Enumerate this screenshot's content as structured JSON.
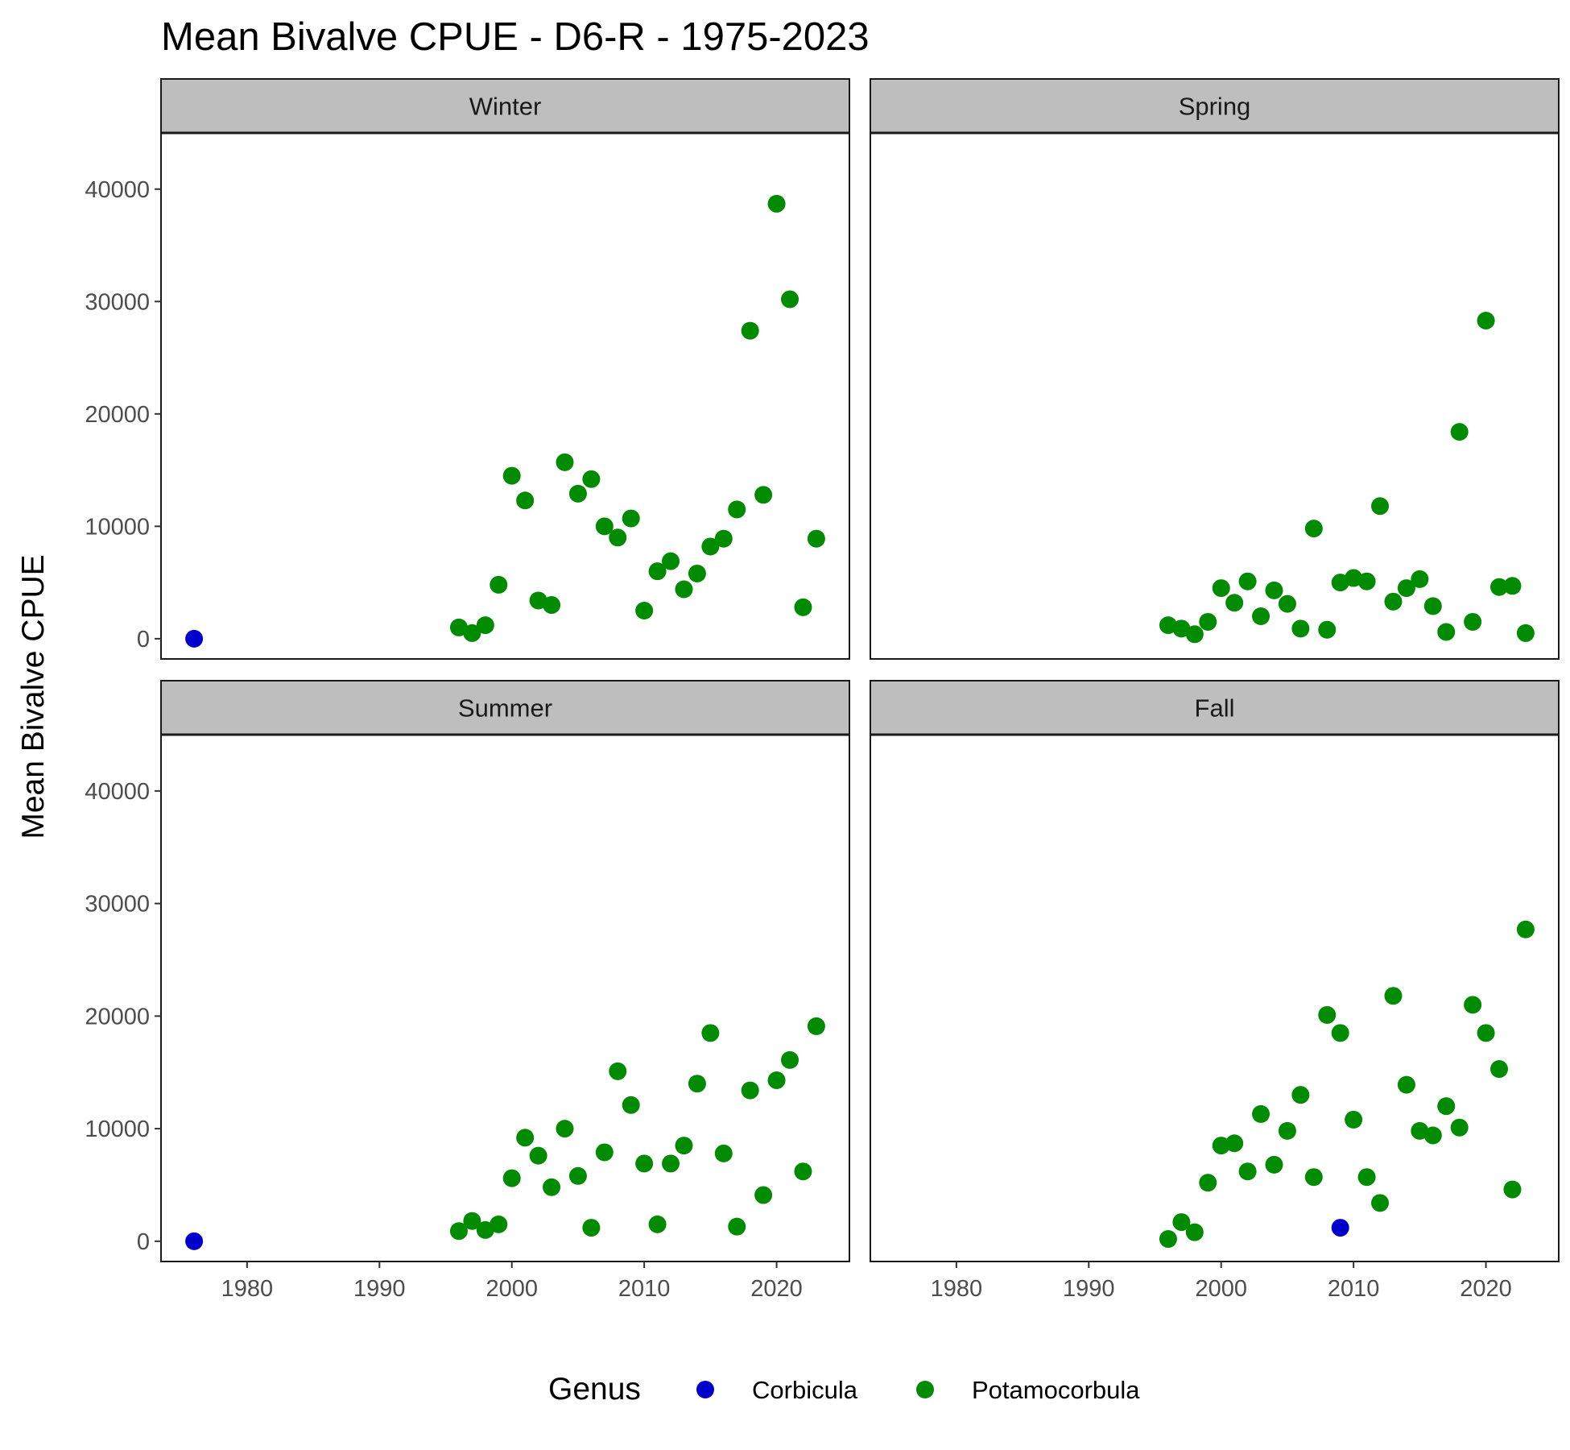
{
  "chart_data": {
    "type": "scatter",
    "title": "Mean Bivalve CPUE - D6-R - 1975-2023",
    "xlabel": "",
    "ylabel": "Mean Bivalve CPUE",
    "xlim": [
      1973.5,
      2025.5
    ],
    "ylim": [
      -1800,
      45000
    ],
    "x_ticks": [
      1980,
      1990,
      2000,
      2010,
      2020
    ],
    "y_ticks": [
      0,
      10000,
      20000,
      30000,
      40000
    ],
    "grid": false,
    "legend": {
      "title": "Genus",
      "position": "bottom",
      "entries": [
        {
          "name": "Corbicula",
          "color": "#0000CD"
        },
        {
          "name": "Potamocorbula",
          "color": "#008B00"
        }
      ]
    },
    "facets": [
      {
        "name": "Winter",
        "series": [
          {
            "name": "Corbicula",
            "points": [
              [
                1976,
                0
              ]
            ]
          },
          {
            "name": "Potamocorbula",
            "points": [
              [
                1996,
                1000
              ],
              [
                1997,
                500
              ],
              [
                1998,
                1200
              ],
              [
                1999,
                4800
              ],
              [
                2000,
                14500
              ],
              [
                2001,
                12300
              ],
              [
                2002,
                3400
              ],
              [
                2003,
                3000
              ],
              [
                2004,
                15700
              ],
              [
                2005,
                12900
              ],
              [
                2006,
                14200
              ],
              [
                2007,
                10000
              ],
              [
                2008,
                9000
              ],
              [
                2009,
                10700
              ],
              [
                2010,
                2500
              ],
              [
                2011,
                6000
              ],
              [
                2012,
                6900
              ],
              [
                2013,
                4400
              ],
              [
                2014,
                5800
              ],
              [
                2015,
                8200
              ],
              [
                2016,
                8900
              ],
              [
                2017,
                11500
              ],
              [
                2018,
                27400
              ],
              [
                2019,
                12800
              ],
              [
                2020,
                38700
              ],
              [
                2021,
                30200
              ],
              [
                2022,
                2800
              ],
              [
                2023,
                8900
              ]
            ]
          }
        ]
      },
      {
        "name": "Spring",
        "series": [
          {
            "name": "Corbicula",
            "points": []
          },
          {
            "name": "Potamocorbula",
            "points": [
              [
                1996,
                1200
              ],
              [
                1997,
                900
              ],
              [
                1998,
                400
              ],
              [
                1999,
                1500
              ],
              [
                2000,
                4500
              ],
              [
                2001,
                3200
              ],
              [
                2002,
                5100
              ],
              [
                2003,
                2000
              ],
              [
                2004,
                4300
              ],
              [
                2005,
                3100
              ],
              [
                2006,
                900
              ],
              [
                2007,
                9800
              ],
              [
                2008,
                800
              ],
              [
                2009,
                5000
              ],
              [
                2010,
                5400
              ],
              [
                2011,
                5100
              ],
              [
                2012,
                11800
              ],
              [
                2013,
                3300
              ],
              [
                2014,
                4500
              ],
              [
                2015,
                5300
              ],
              [
                2016,
                2900
              ],
              [
                2017,
                600
              ],
              [
                2018,
                18400
              ],
              [
                2019,
                1500
              ],
              [
                2020,
                28300
              ],
              [
                2021,
                4600
              ],
              [
                2022,
                4700
              ],
              [
                2023,
                500
              ]
            ]
          }
        ]
      },
      {
        "name": "Summer",
        "series": [
          {
            "name": "Corbicula",
            "points": [
              [
                1976,
                0
              ]
            ]
          },
          {
            "name": "Potamocorbula",
            "points": [
              [
                1996,
                900
              ],
              [
                1997,
                1800
              ],
              [
                1998,
                1000
              ],
              [
                1999,
                1500
              ],
              [
                2000,
                5600
              ],
              [
                2001,
                9200
              ],
              [
                2002,
                7600
              ],
              [
                2003,
                4800
              ],
              [
                2004,
                10000
              ],
              [
                2005,
                5800
              ],
              [
                2006,
                1200
              ],
              [
                2007,
                7900
              ],
              [
                2008,
                15100
              ],
              [
                2009,
                12100
              ],
              [
                2010,
                6900
              ],
              [
                2011,
                1500
              ],
              [
                2012,
                6900
              ],
              [
                2013,
                8500
              ],
              [
                2014,
                14000
              ],
              [
                2015,
                18500
              ],
              [
                2016,
                7800
              ],
              [
                2017,
                1300
              ],
              [
                2018,
                13400
              ],
              [
                2019,
                4100
              ],
              [
                2020,
                14300
              ],
              [
                2021,
                16100
              ],
              [
                2022,
                6200
              ],
              [
                2023,
                19100
              ]
            ]
          }
        ]
      },
      {
        "name": "Fall",
        "series": [
          {
            "name": "Corbicula",
            "points": [
              [
                2009,
                1200
              ]
            ]
          },
          {
            "name": "Potamocorbula",
            "points": [
              [
                1996,
                200
              ],
              [
                1997,
                1700
              ],
              [
                1998,
                800
              ],
              [
                1999,
                5200
              ],
              [
                2000,
                8500
              ],
              [
                2001,
                8700
              ],
              [
                2002,
                6200
              ],
              [
                2003,
                11300
              ],
              [
                2004,
                6800
              ],
              [
                2005,
                9800
              ],
              [
                2006,
                13000
              ],
              [
                2007,
                5700
              ],
              [
                2008,
                20100
              ],
              [
                2009,
                18500
              ],
              [
                2010,
                10800
              ],
              [
                2011,
                5700
              ],
              [
                2012,
                3400
              ],
              [
                2013,
                21800
              ],
              [
                2014,
                13900
              ],
              [
                2015,
                9800
              ],
              [
                2016,
                9400
              ],
              [
                2017,
                12000
              ],
              [
                2018,
                10100
              ],
              [
                2019,
                21000
              ],
              [
                2020,
                18500
              ],
              [
                2021,
                15300
              ],
              [
                2022,
                4600
              ],
              [
                2023,
                27700
              ]
            ]
          }
        ]
      }
    ]
  }
}
